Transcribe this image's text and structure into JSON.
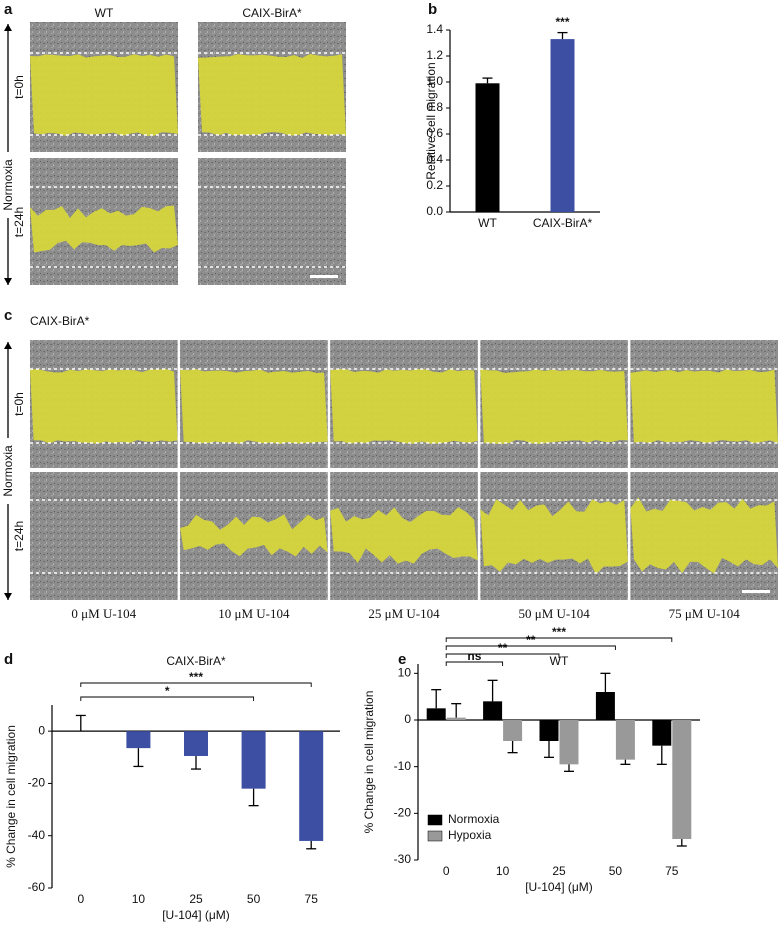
{
  "panel_a": {
    "letter": "a",
    "columns": [
      "WT",
      "CAIX-BirA*"
    ],
    "condition": "Normoxia",
    "rows": [
      "t=0h",
      "t=24h"
    ]
  },
  "panel_c": {
    "letter": "c",
    "title": "CAIX-BirA*",
    "condition": "Normoxia",
    "rows": [
      "t=0h",
      "t=24h"
    ],
    "columns": [
      "0 μM U-104",
      "10 μM U-104",
      "25 μM U-104",
      "50 μM U-104",
      "75 μM U-104"
    ]
  },
  "chart_data": [
    {
      "panel_letter": "b",
      "type": "bar",
      "ylabel": "Relative cell migration",
      "categories": [
        "WT",
        "CAIX-BirA*"
      ],
      "values": [
        0.99,
        1.33
      ],
      "errors": [
        0.04,
        0.05
      ],
      "colors": [
        "#000000",
        "#3c4fa3"
      ],
      "ylim": [
        0,
        1.4
      ],
      "yticks": [
        {
          "value": 0,
          "label": "0.0"
        },
        0.2,
        0.4,
        0.6,
        0.8,
        {
          "value": 1,
          "label": "1.0"
        },
        1.2,
        1.4
      ],
      "annotations": [
        {
          "text": "***",
          "category": "CAIX-BirA*"
        }
      ]
    },
    {
      "panel_letter": "d",
      "type": "bar",
      "title": "CAIX-BirA*",
      "xlabel": "[U-104] (μM)",
      "ylabel": "% Change in cell migration",
      "categories": [
        "0",
        "10",
        "25",
        "50",
        "75"
      ],
      "values": [
        0,
        -6.5,
        -9.5,
        -22,
        -42
      ],
      "errors": [
        6,
        7,
        5,
        6.5,
        3
      ],
      "color": "#3c4fa3",
      "ylim": [
        -60,
        10
      ],
      "yticks": [
        -60,
        -40,
        -20,
        0
      ],
      "comparisons": [
        {
          "text": "*",
          "category": "50"
        },
        {
          "text": "***",
          "category": "75"
        }
      ]
    },
    {
      "panel_letter": "e",
      "type": "grouped_bar",
      "title": "WT",
      "xlabel": "[U-104] (μM)",
      "ylabel": "% Change in cell migration",
      "categories": [
        "0",
        "10",
        "25",
        "50",
        "75"
      ],
      "series": [
        {
          "name": "Normoxia",
          "color": "#000000",
          "values": [
            2.5,
            4,
            -4.5,
            6,
            -5.5
          ],
          "errors": [
            4,
            4.5,
            3.5,
            4,
            4
          ]
        },
        {
          "name": "Hypoxia",
          "color": "#999999",
          "values": [
            0.5,
            -4.5,
            -9.5,
            -8.5,
            -25.5
          ],
          "errors": [
            3,
            2.5,
            1.5,
            1,
            1.5
          ]
        }
      ],
      "ylim": [
        -30,
        12
      ],
      "yticks": [
        -30,
        -20,
        -10,
        0,
        10
      ],
      "legend": "lower left",
      "comparisons": [
        {
          "text": "ns",
          "category": "10"
        },
        {
          "text": "**",
          "category": "25"
        },
        {
          "text": "**",
          "category": "50"
        },
        {
          "text": "***",
          "category": "75"
        }
      ]
    }
  ]
}
